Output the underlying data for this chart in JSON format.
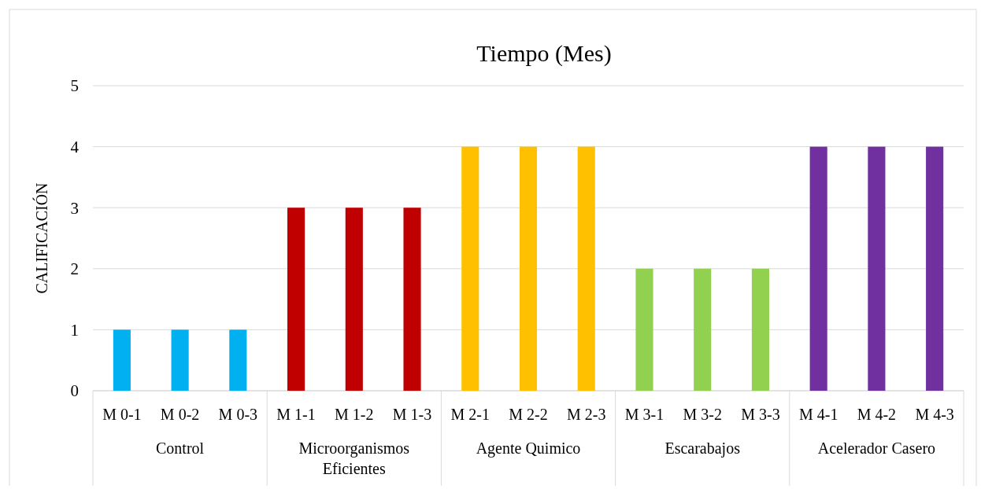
{
  "chart_data": {
    "type": "bar",
    "title": "Tiempo (Mes)",
    "ylabel": "CALIFICACIÓN",
    "categories": [
      "M 0-1",
      "M 0-2",
      "M 0-3",
      "M 1-1",
      "M 1-2",
      "M 1-3",
      "M 2-1",
      "M 2-2",
      "M 2-3",
      "M 3-1",
      "M 3-2",
      "M 3-3",
      "M 4-1",
      "M 4-2",
      "M 4-3"
    ],
    "values": [
      1,
      1,
      1,
      3,
      3,
      3,
      4,
      4,
      4,
      2,
      2,
      2,
      4,
      4,
      4
    ],
    "colors": [
      "#00b0f0",
      "#00b0f0",
      "#00b0f0",
      "#c00000",
      "#c00000",
      "#c00000",
      "#ffc000",
      "#ffc000",
      "#ffc000",
      "#92d050",
      "#92d050",
      "#92d050",
      "#7030a0",
      "#7030a0",
      "#7030a0"
    ],
    "annotations": [
      "Control",
      "Microorganismos Eficientes",
      "Agente Quimico",
      "Escarabajos",
      "Acelerador Casero"
    ],
    "ylim": [
      0,
      5
    ],
    "yticks": [
      0,
      1,
      2,
      3,
      4,
      5
    ],
    "grid": "y"
  }
}
